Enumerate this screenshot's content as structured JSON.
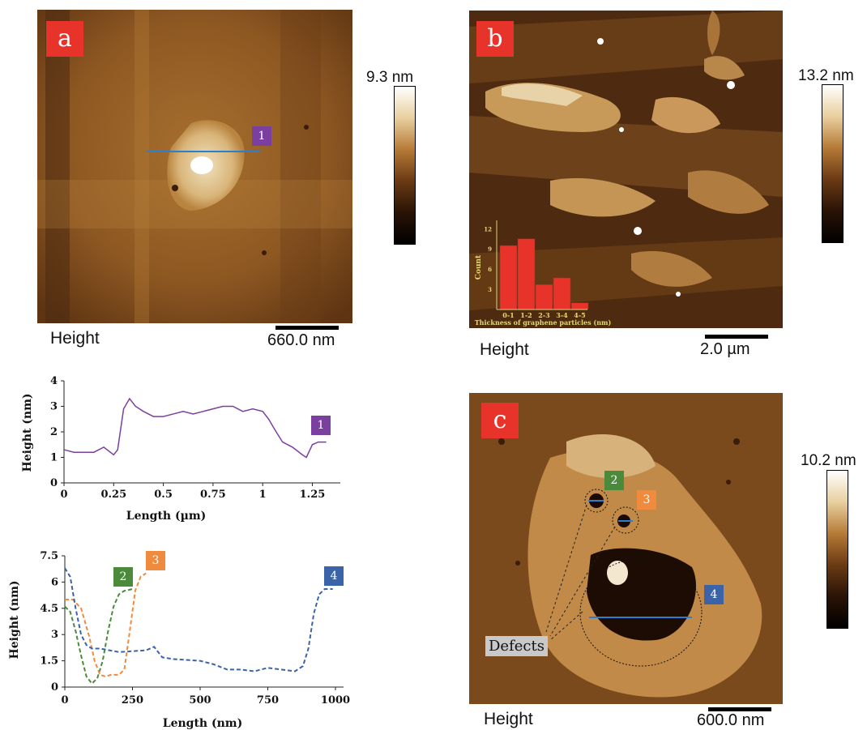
{
  "panel_a": {
    "badge": "a",
    "line_tag": "1",
    "height_label": "Height",
    "scale_label": "660.0 nm",
    "colorbar_max": "9.3 nm"
  },
  "panel_b": {
    "badge": "b",
    "height_label": "Height",
    "scale_label": "2.0 µm",
    "colorbar_max": "13.2 nm"
  },
  "panel_c": {
    "badge": "c",
    "tags": [
      "2",
      "3",
      "4"
    ],
    "defects_label": "Defects",
    "height_label": "Height",
    "scale_label": "600.0 nm",
    "colorbar_max": "10.2 nm"
  },
  "colors": {
    "badge_red": "#e8332a",
    "tag1": "#7b3fa0",
    "tag2": "#4a8a3a",
    "tag3": "#f08a3c",
    "tag4": "#3a63a8",
    "profile_line": "#2a7fd0"
  },
  "chart_data": [
    {
      "type": "bar",
      "xlabel": "Thickness of graphene particles (nm)",
      "ylabel": "Count",
      "categories": [
        "0-1",
        "1-2",
        "2-3",
        "3-4",
        "4-5"
      ],
      "values": [
        9.5,
        10.5,
        3.7,
        4.7,
        1.0
      ],
      "yticks": [
        "3",
        "6",
        "9",
        "12"
      ],
      "ylim": [
        0,
        13
      ],
      "bar_color": "#e8332a"
    },
    {
      "type": "line",
      "xlabel": "Length (µm)",
      "ylabel": "Height (nm)",
      "xlim": [
        0,
        1.35
      ],
      "ylim": [
        0,
        4
      ],
      "xticks": [
        "0",
        "0.25",
        "0.5",
        "0.75",
        "1",
        "1.25"
      ],
      "yticks": [
        "0",
        "1",
        "2",
        "3",
        "4"
      ],
      "series": [
        {
          "name": "1",
          "color": "#7b3fa0",
          "x": [
            0,
            0.05,
            0.1,
            0.15,
            0.2,
            0.25,
            0.27,
            0.3,
            0.33,
            0.36,
            0.4,
            0.45,
            0.5,
            0.55,
            0.6,
            0.65,
            0.7,
            0.75,
            0.8,
            0.85,
            0.9,
            0.95,
            1.0,
            1.03,
            1.06,
            1.1,
            1.15,
            1.2,
            1.22,
            1.25,
            1.28,
            1.32
          ],
          "y": [
            1.3,
            1.2,
            1.2,
            1.2,
            1.4,
            1.1,
            1.3,
            2.9,
            3.3,
            3.0,
            2.8,
            2.6,
            2.6,
            2.7,
            2.8,
            2.7,
            2.8,
            2.9,
            3.0,
            3.0,
            2.8,
            2.9,
            2.8,
            2.5,
            2.1,
            1.6,
            1.4,
            1.1,
            1.0,
            1.5,
            1.6,
            1.6
          ]
        }
      ]
    },
    {
      "type": "line",
      "xlabel": "Length (nm)",
      "ylabel": "Height (nm)",
      "xlim": [
        0,
        1000
      ],
      "ylim": [
        0,
        7.5
      ],
      "xticks": [
        "0",
        "250",
        "500",
        "750",
        "1000"
      ],
      "yticks": [
        "0",
        "1.5",
        "3",
        "4.5",
        "6",
        "7.5"
      ],
      "series": [
        {
          "name": "2",
          "color": "#4a8a3a",
          "x": [
            0,
            20,
            40,
            60,
            80,
            100,
            120,
            140,
            160,
            180,
            200,
            220,
            250
          ],
          "y": [
            4.6,
            4.3,
            3.2,
            1.8,
            0.6,
            0.2,
            0.5,
            1.5,
            3.2,
            4.6,
            5.3,
            5.5,
            5.6
          ]
        },
        {
          "name": "3",
          "color": "#f08a3c",
          "x": [
            0,
            30,
            60,
            90,
            110,
            130,
            150,
            170,
            200,
            220,
            240,
            260,
            280,
            300
          ],
          "y": [
            5.0,
            5.0,
            4.5,
            2.9,
            1.5,
            0.7,
            0.6,
            0.7,
            0.7,
            1.0,
            3.2,
            5.5,
            6.3,
            6.5
          ]
        },
        {
          "name": "4",
          "color": "#3a63a8",
          "x": [
            0,
            20,
            40,
            60,
            80,
            100,
            130,
            200,
            300,
            330,
            360,
            400,
            500,
            550,
            600,
            650,
            700,
            750,
            800,
            850,
            880,
            900,
            920,
            940,
            960,
            990
          ],
          "y": [
            6.8,
            6.3,
            4.5,
            3.0,
            2.4,
            2.2,
            2.2,
            2.0,
            2.1,
            2.3,
            1.7,
            1.6,
            1.5,
            1.3,
            1.0,
            1.0,
            0.9,
            1.1,
            1.0,
            0.9,
            1.2,
            2.2,
            4.2,
            5.3,
            5.6,
            5.6
          ]
        }
      ]
    }
  ]
}
